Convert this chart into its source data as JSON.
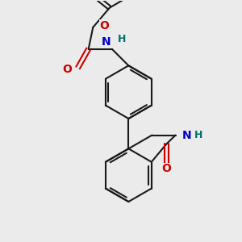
{
  "background_color": "#ebebeb",
  "bond_color": "#1a1a1a",
  "bond_width": 1.5,
  "atom_colors": {
    "O": "#cc0000",
    "N_blue": "#0000cc",
    "NH_teal": "#007070",
    "C": "#1a1a1a"
  },
  "font_size": 9,
  "figsize": [
    3.0,
    3.0
  ],
  "dpi": 100,
  "xlim": [
    0.0,
    6.5
  ],
  "ylim": [
    0.0,
    8.0
  ]
}
